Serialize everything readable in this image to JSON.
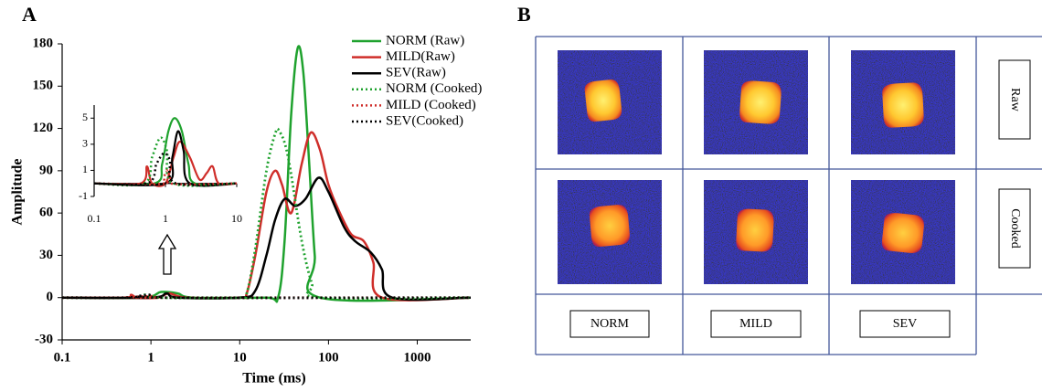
{
  "panel_labels": [
    "A",
    "B"
  ],
  "chart_data": [
    {
      "type": "line",
      "x_label": "Time (ms)",
      "y_label": "Amplitude",
      "xscale": "log",
      "xlim": [
        0.1,
        4000
      ],
      "ylim": [
        -30,
        180
      ],
      "xticks": [
        0.1,
        1,
        10,
        100,
        1000
      ],
      "yticks": [
        -30,
        0,
        30,
        60,
        90,
        120,
        150,
        180
      ],
      "legend": "upper right",
      "series": [
        {
          "name": "NORM (Raw)",
          "color": "#1fa22e",
          "style": "solid",
          "x": [
            0.1,
            0.8,
            1.3,
            2,
            3,
            20,
            27,
            32,
            38,
            45,
            52,
            60,
            70,
            80,
            4000
          ],
          "values": [
            0,
            0,
            4,
            3,
            0,
            0,
            0,
            40,
            130,
            177,
            160,
            100,
            30,
            0,
            0
          ]
        },
        {
          "name": "MILD(Raw)",
          "color": "#cf2e2a",
          "style": "solid",
          "x": [
            0.1,
            0.5,
            0.6,
            0.7,
            1.2,
            1.6,
            2.5,
            10,
            12,
            15,
            20,
            25,
            30,
            38,
            50,
            63,
            80,
            100,
            130,
            180,
            250,
            320,
            400,
            4000
          ],
          "values": [
            0,
            0,
            2,
            0,
            0,
            3,
            0,
            0,
            3,
            30,
            75,
            90,
            80,
            60,
            95,
            117,
            105,
            80,
            62,
            45,
            40,
            25,
            0,
            0
          ]
        },
        {
          "name": "SEV(Raw)",
          "color": "#000000",
          "style": "solid",
          "x": [
            0.1,
            1,
            1.5,
            2,
            10,
            15,
            20,
            25,
            32,
            42,
            55,
            77,
            100,
            150,
            200,
            300,
            400,
            520,
            4000
          ],
          "values": [
            0,
            0,
            3,
            0,
            0,
            5,
            30,
            55,
            70,
            65,
            70,
            85,
            75,
            50,
            40,
            32,
            20,
            0,
            0
          ]
        },
        {
          "name": "NORM (Cooked)",
          "color": "#1fa22e",
          "style": "dotted",
          "x": [
            0.1,
            0.6,
            0.85,
            1.2,
            10,
            12,
            15,
            20,
            25,
            28,
            35,
            50,
            65,
            80,
            4000
          ],
          "values": [
            0,
            0,
            2,
            0,
            0,
            3,
            35,
            90,
            116,
            118,
            100,
            40,
            10,
            0,
            0
          ]
        },
        {
          "name": "MILD (Cooked)",
          "color": "#cf2e2a",
          "style": "dotted",
          "x": [
            0.1,
            0.9,
            1.05,
            1.2,
            4000
          ],
          "values": [
            0,
            0,
            1,
            0,
            0
          ]
        },
        {
          "name": "SEV(Cooked)",
          "color": "#000000",
          "style": "dotted",
          "x": [
            0.1,
            0.55,
            0.95,
            1.4,
            4000
          ],
          "values": [
            0,
            0,
            2,
            0,
            0
          ]
        }
      ]
    },
    {
      "type": "line",
      "xscale": "log",
      "xlim": [
        0.1,
        10
      ],
      "ylim": [
        -1,
        6
      ],
      "xticks": [
        0.1,
        1,
        10
      ],
      "yticks": [
        -1,
        1,
        3,
        5
      ],
      "series": [
        {
          "color": "#1fa22e",
          "style": "solid",
          "x": [
            0.1,
            0.7,
            0.9,
            1.1,
            1.35,
            1.7,
            2.1,
            2.6,
            10
          ],
          "values": [
            0,
            0,
            1.5,
            4,
            5,
            4,
            1.5,
            0,
            0
          ]
        },
        {
          "color": "#cf2e2a",
          "style": "solid",
          "x": [
            0.1,
            0.45,
            0.55,
            0.65,
            1,
            1.3,
            1.6,
            2.2,
            3,
            3.8,
            4.6,
            5.6,
            10
          ],
          "values": [
            0,
            0,
            1.3,
            0,
            0,
            2,
            3.2,
            2,
            0.3,
            0.8,
            1.3,
            0,
            0
          ]
        },
        {
          "color": "#000000",
          "style": "solid",
          "x": [
            0.1,
            1,
            1.25,
            1.5,
            1.8,
            2.2,
            10
          ],
          "values": [
            0,
            0,
            2,
            4,
            2.5,
            0,
            0
          ]
        },
        {
          "color": "#1fa22e",
          "style": "dotted",
          "x": [
            0.1,
            0.5,
            0.65,
            0.85,
            1.05,
            1.3,
            10
          ],
          "values": [
            0,
            0,
            2,
            3.5,
            2.5,
            0,
            0
          ]
        },
        {
          "color": "#cf2e2a",
          "style": "dotted",
          "x": [
            0.1,
            0.95,
            1.05,
            1.15,
            10
          ],
          "values": [
            0,
            0,
            1,
            0,
            0
          ]
        },
        {
          "color": "#000000",
          "style": "dotted",
          "x": [
            0.1,
            0.55,
            0.75,
            0.95,
            1.15,
            1.4,
            10
          ],
          "values": [
            0,
            0,
            1.5,
            2.3,
            1.8,
            0,
            0
          ]
        }
      ]
    }
  ],
  "image_grid": {
    "row_labels": [
      "Raw",
      "Cooked"
    ],
    "column_labels": [
      "NORM",
      "MILD",
      "SEV"
    ]
  }
}
